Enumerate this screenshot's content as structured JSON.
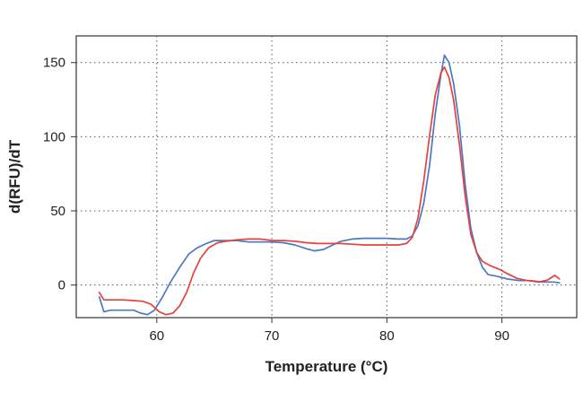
{
  "chart_data": {
    "type": "line",
    "title": "",
    "xlabel": "Temperature (°C)",
    "ylabel": "d(RFU)/dT",
    "xlim": [
      53,
      96.5
    ],
    "ylim": [
      -22,
      168
    ],
    "xticks": [
      60,
      70,
      80,
      90
    ],
    "yticks": [
      0,
      50,
      100,
      150
    ],
    "grid": true,
    "legend": "none",
    "series": [
      {
        "color": "#4a78c8",
        "points": [
          [
            55,
            -8
          ],
          [
            55.4,
            -18
          ],
          [
            56,
            -17
          ],
          [
            57,
            -17
          ],
          [
            58,
            -17
          ],
          [
            58.6,
            -19
          ],
          [
            59.2,
            -20
          ],
          [
            59.8,
            -17
          ],
          [
            60.5,
            -8
          ],
          [
            61.2,
            2
          ],
          [
            62,
            12
          ],
          [
            62.8,
            21
          ],
          [
            63.5,
            25
          ],
          [
            64.3,
            28
          ],
          [
            65,
            30
          ],
          [
            66,
            30
          ],
          [
            67,
            30
          ],
          [
            68,
            29
          ],
          [
            69,
            29
          ],
          [
            70,
            29
          ],
          [
            71,
            28.5
          ],
          [
            72,
            27
          ],
          [
            73,
            24.5
          ],
          [
            73.7,
            23
          ],
          [
            74.5,
            24
          ],
          [
            75.3,
            27
          ],
          [
            76,
            29.5
          ],
          [
            77,
            31
          ],
          [
            78,
            31.5
          ],
          [
            79,
            31.5
          ],
          [
            80,
            31.5
          ],
          [
            81,
            31
          ],
          [
            81.7,
            31
          ],
          [
            82.2,
            33
          ],
          [
            82.7,
            40
          ],
          [
            83.2,
            55
          ],
          [
            83.7,
            80
          ],
          [
            84.2,
            115
          ],
          [
            84.7,
            142
          ],
          [
            85,
            155
          ],
          [
            85.4,
            150
          ],
          [
            85.8,
            136
          ],
          [
            86.3,
            108
          ],
          [
            86.8,
            68
          ],
          [
            87.3,
            38
          ],
          [
            87.8,
            22
          ],
          [
            88.3,
            12
          ],
          [
            88.8,
            7
          ],
          [
            89.5,
            6
          ],
          [
            90.5,
            4
          ],
          [
            91.5,
            3
          ],
          [
            92.5,
            3
          ],
          [
            93.5,
            2
          ],
          [
            94.5,
            2
          ],
          [
            95,
            1.5
          ]
        ]
      },
      {
        "color": "#e8413c",
        "points": [
          [
            55,
            -5
          ],
          [
            55.4,
            -10
          ],
          [
            56,
            -10
          ],
          [
            57,
            -10
          ],
          [
            58,
            -10.5
          ],
          [
            58.8,
            -11
          ],
          [
            59.5,
            -13
          ],
          [
            60.2,
            -18
          ],
          [
            60.8,
            -20
          ],
          [
            61.4,
            -19
          ],
          [
            62,
            -14
          ],
          [
            62.6,
            -5
          ],
          [
            63.2,
            8
          ],
          [
            63.8,
            18
          ],
          [
            64.5,
            25
          ],
          [
            65.3,
            28.5
          ],
          [
            66,
            29.5
          ],
          [
            67,
            30.5
          ],
          [
            68,
            31
          ],
          [
            69,
            31
          ],
          [
            70,
            30
          ],
          [
            71,
            30
          ],
          [
            72,
            29.5
          ],
          [
            73,
            28.5
          ],
          [
            74,
            28
          ],
          [
            75,
            28
          ],
          [
            76,
            28
          ],
          [
            77,
            27.5
          ],
          [
            78,
            27
          ],
          [
            79,
            27
          ],
          [
            80,
            27
          ],
          [
            81,
            27
          ],
          [
            81.7,
            28
          ],
          [
            82.2,
            32
          ],
          [
            82.7,
            45
          ],
          [
            83.2,
            70
          ],
          [
            83.7,
            100
          ],
          [
            84.2,
            128
          ],
          [
            84.7,
            143
          ],
          [
            85,
            147
          ],
          [
            85.4,
            140
          ],
          [
            85.8,
            125
          ],
          [
            86.3,
            95
          ],
          [
            86.8,
            60
          ],
          [
            87.3,
            34
          ],
          [
            87.8,
            22
          ],
          [
            88.3,
            16
          ],
          [
            89,
            13
          ],
          [
            89.8,
            10.5
          ],
          [
            90.5,
            7.5
          ],
          [
            91.3,
            4.5
          ],
          [
            92.2,
            3
          ],
          [
            93.2,
            2
          ],
          [
            94,
            3.5
          ],
          [
            94.6,
            6.5
          ],
          [
            95,
            4
          ]
        ]
      }
    ]
  }
}
